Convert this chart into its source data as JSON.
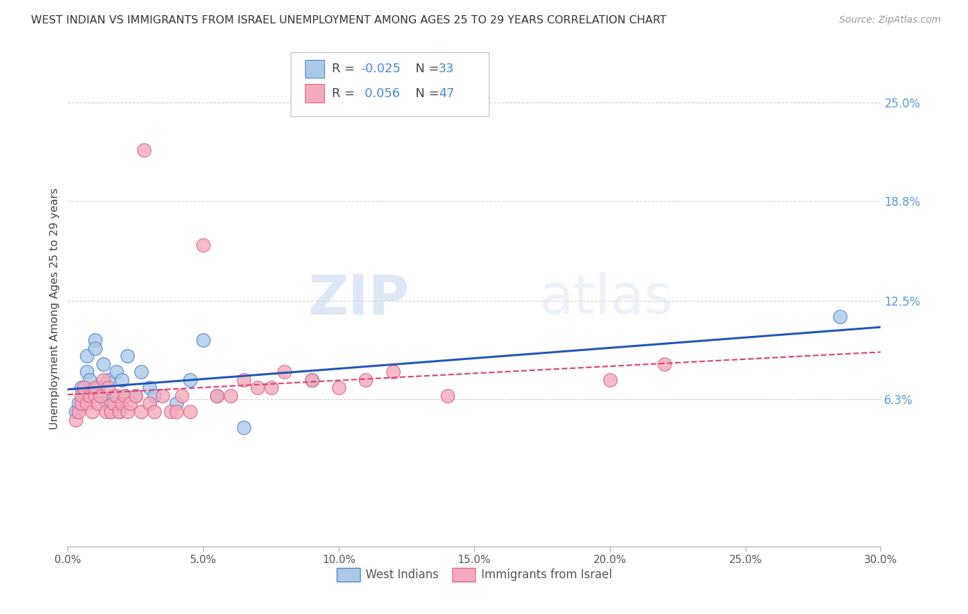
{
  "title": "WEST INDIAN VS IMMIGRANTS FROM ISRAEL UNEMPLOYMENT AMONG AGES 25 TO 29 YEARS CORRELATION CHART",
  "source": "Source: ZipAtlas.com",
  "ylabel": "Unemployment Among Ages 25 to 29 years",
  "xlim": [
    0.0,
    0.3
  ],
  "ylim": [
    -0.03,
    0.27
  ],
  "xtick_labels": [
    "0.0%",
    "5.0%",
    "10.0%",
    "15.0%",
    "20.0%",
    "25.0%",
    "30.0%"
  ],
  "xtick_vals": [
    0.0,
    0.05,
    0.1,
    0.15,
    0.2,
    0.25,
    0.3
  ],
  "ytick_labels_right": [
    "25.0%",
    "18.8%",
    "12.5%",
    "6.3%"
  ],
  "ytick_vals_right": [
    0.25,
    0.188,
    0.125,
    0.063
  ],
  "background_color": "#ffffff",
  "grid_color": "#d0d0d0",
  "watermark_zip": "ZIP",
  "watermark_atlas": "atlas",
  "legend_R1": "-0.025",
  "legend_N1": "33",
  "legend_R2": "0.056",
  "legend_N2": "47",
  "series1_color": "#aac8e8",
  "series2_color": "#f4aabb",
  "series1_edge": "#5588cc",
  "series2_edge": "#dd6688",
  "line1_color": "#2255bb",
  "line2_color": "#dd4477",
  "series1_label": "West Indians",
  "series2_label": "Immigrants from Israel",
  "west_indians_x": [
    0.003,
    0.004,
    0.005,
    0.006,
    0.007,
    0.007,
    0.008,
    0.009,
    0.01,
    0.01,
    0.011,
    0.012,
    0.013,
    0.014,
    0.015,
    0.016,
    0.017,
    0.018,
    0.019,
    0.02,
    0.021,
    0.022,
    0.025,
    0.027,
    0.03,
    0.032,
    0.04,
    0.045,
    0.05,
    0.055,
    0.065,
    0.09,
    0.285
  ],
  "west_indians_y": [
    0.055,
    0.06,
    0.07,
    0.065,
    0.08,
    0.09,
    0.075,
    0.065,
    0.1,
    0.095,
    0.07,
    0.065,
    0.085,
    0.06,
    0.075,
    0.055,
    0.065,
    0.08,
    0.055,
    0.075,
    0.065,
    0.09,
    0.065,
    0.08,
    0.07,
    0.065,
    0.06,
    0.075,
    0.1,
    0.065,
    0.045,
    0.075,
    0.115
  ],
  "israel_x": [
    0.003,
    0.004,
    0.005,
    0.005,
    0.006,
    0.007,
    0.008,
    0.009,
    0.01,
    0.01,
    0.011,
    0.012,
    0.013,
    0.014,
    0.015,
    0.016,
    0.017,
    0.018,
    0.019,
    0.02,
    0.021,
    0.022,
    0.023,
    0.025,
    0.027,
    0.028,
    0.03,
    0.032,
    0.035,
    0.038,
    0.04,
    0.042,
    0.045,
    0.05,
    0.055,
    0.06,
    0.065,
    0.07,
    0.075,
    0.08,
    0.09,
    0.1,
    0.11,
    0.12,
    0.14,
    0.2,
    0.22
  ],
  "israel_y": [
    0.05,
    0.055,
    0.06,
    0.065,
    0.07,
    0.06,
    0.065,
    0.055,
    0.065,
    0.07,
    0.06,
    0.065,
    0.075,
    0.055,
    0.07,
    0.055,
    0.06,
    0.065,
    0.055,
    0.06,
    0.065,
    0.055,
    0.06,
    0.065,
    0.055,
    0.22,
    0.06,
    0.055,
    0.065,
    0.055,
    0.055,
    0.065,
    0.055,
    0.16,
    0.065,
    0.065,
    0.075,
    0.07,
    0.07,
    0.08,
    0.075,
    0.07,
    0.075,
    0.08,
    0.065,
    0.075,
    0.085
  ]
}
